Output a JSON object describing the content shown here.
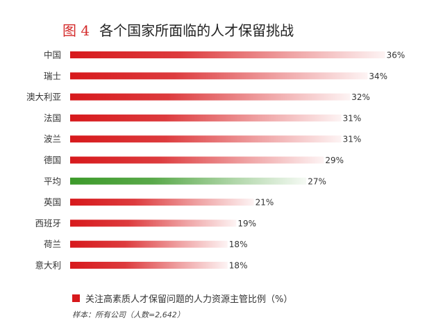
{
  "figure_label": "图 4",
  "title": "各个国家所面临的人才保留挑战",
  "legend_text": "关注高素质人才保留问题的人力资源主管比例（%）",
  "sample_note": "样本：所有公司（人数=2,642）",
  "colors": {
    "bar": "#d7191c",
    "average": "#3c9a2a"
  },
  "chart_data": {
    "type": "bar",
    "orientation": "horizontal",
    "title": "各个国家所面临的人才保留挑战",
    "categories": [
      "中国",
      "瑞士",
      "澳大利亚",
      "法国",
      "波兰",
      "德国",
      "平均",
      "英国",
      "西班牙",
      "荷兰",
      "意大利"
    ],
    "values": [
      36,
      34,
      32,
      31,
      31,
      29,
      27,
      21,
      19,
      18,
      18
    ],
    "value_labels": [
      "36%",
      "34%",
      "32%",
      "31%",
      "31%",
      "29%",
      "27%",
      "21%",
      "19%",
      "18%",
      "18%"
    ],
    "highlight_category": "平均",
    "unit": "%",
    "legend": "关注高素质人才保留问题的人力资源主管比例（%）"
  }
}
